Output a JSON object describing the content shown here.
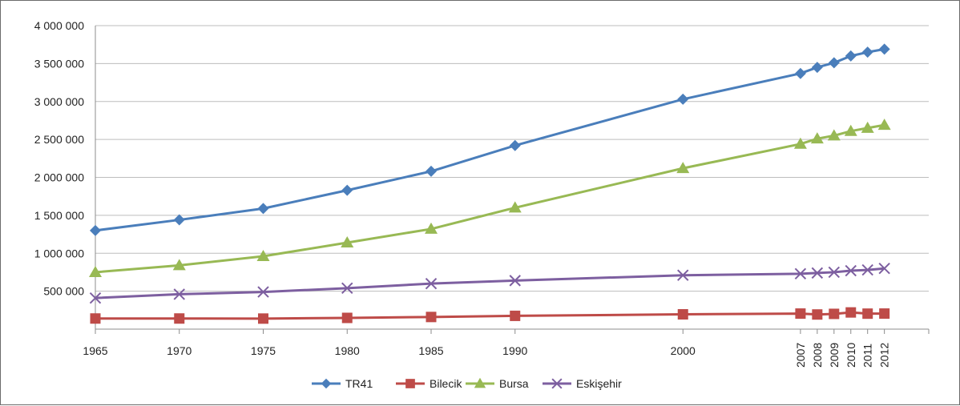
{
  "chart_data": {
    "type": "line",
    "title": "",
    "xlabel": "",
    "ylabel": "",
    "x": [
      1965,
      1970,
      1975,
      1980,
      1985,
      1990,
      2000,
      2007,
      2008,
      2009,
      2010,
      2011,
      2012
    ],
    "x_tick_labels": [
      "1965",
      "1970",
      "1975",
      "1980",
      "1985",
      "1990",
      "2000",
      "2007",
      "2008",
      "2009",
      "2010",
      "2011",
      "2012"
    ],
    "ylim": [
      0,
      4000000
    ],
    "y_ticks": [
      500000,
      1000000,
      1500000,
      2000000,
      2500000,
      3000000,
      3500000,
      4000000
    ],
    "y_tick_labels": [
      "500 000",
      "1 000 000",
      "1 500 000",
      "2 000 000",
      "2 500 000",
      "3 000 000",
      "3 500 000",
      "4 000 000"
    ],
    "grid": "horizontal",
    "legend_position": "bottom",
    "series": [
      {
        "name": "TR41",
        "color": "#4a7ebb",
        "marker": "diamond",
        "values": [
          1300000,
          1440000,
          1590000,
          1830000,
          2080000,
          2420000,
          3030000,
          3370000,
          3450000,
          3510000,
          3600000,
          3650000,
          3690000
        ]
      },
      {
        "name": "Bilecik",
        "color": "#be4b48",
        "marker": "square",
        "values": [
          140000,
          140000,
          139000,
          148000,
          160000,
          175000,
          195000,
          205000,
          193000,
          201000,
          220000,
          204000,
          205000
        ]
      },
      {
        "name": "Bursa",
        "color": "#98b954",
        "marker": "triangle",
        "values": [
          750000,
          840000,
          960000,
          1140000,
          1320000,
          1600000,
          2120000,
          2440000,
          2510000,
          2550000,
          2610000,
          2650000,
          2690000
        ]
      },
      {
        "name": "Eskişehir",
        "color": "#7d5fa0",
        "marker": "x",
        "values": [
          410000,
          460000,
          490000,
          540000,
          600000,
          640000,
          710000,
          730000,
          740000,
          750000,
          770000,
          780000,
          800000
        ]
      }
    ]
  }
}
